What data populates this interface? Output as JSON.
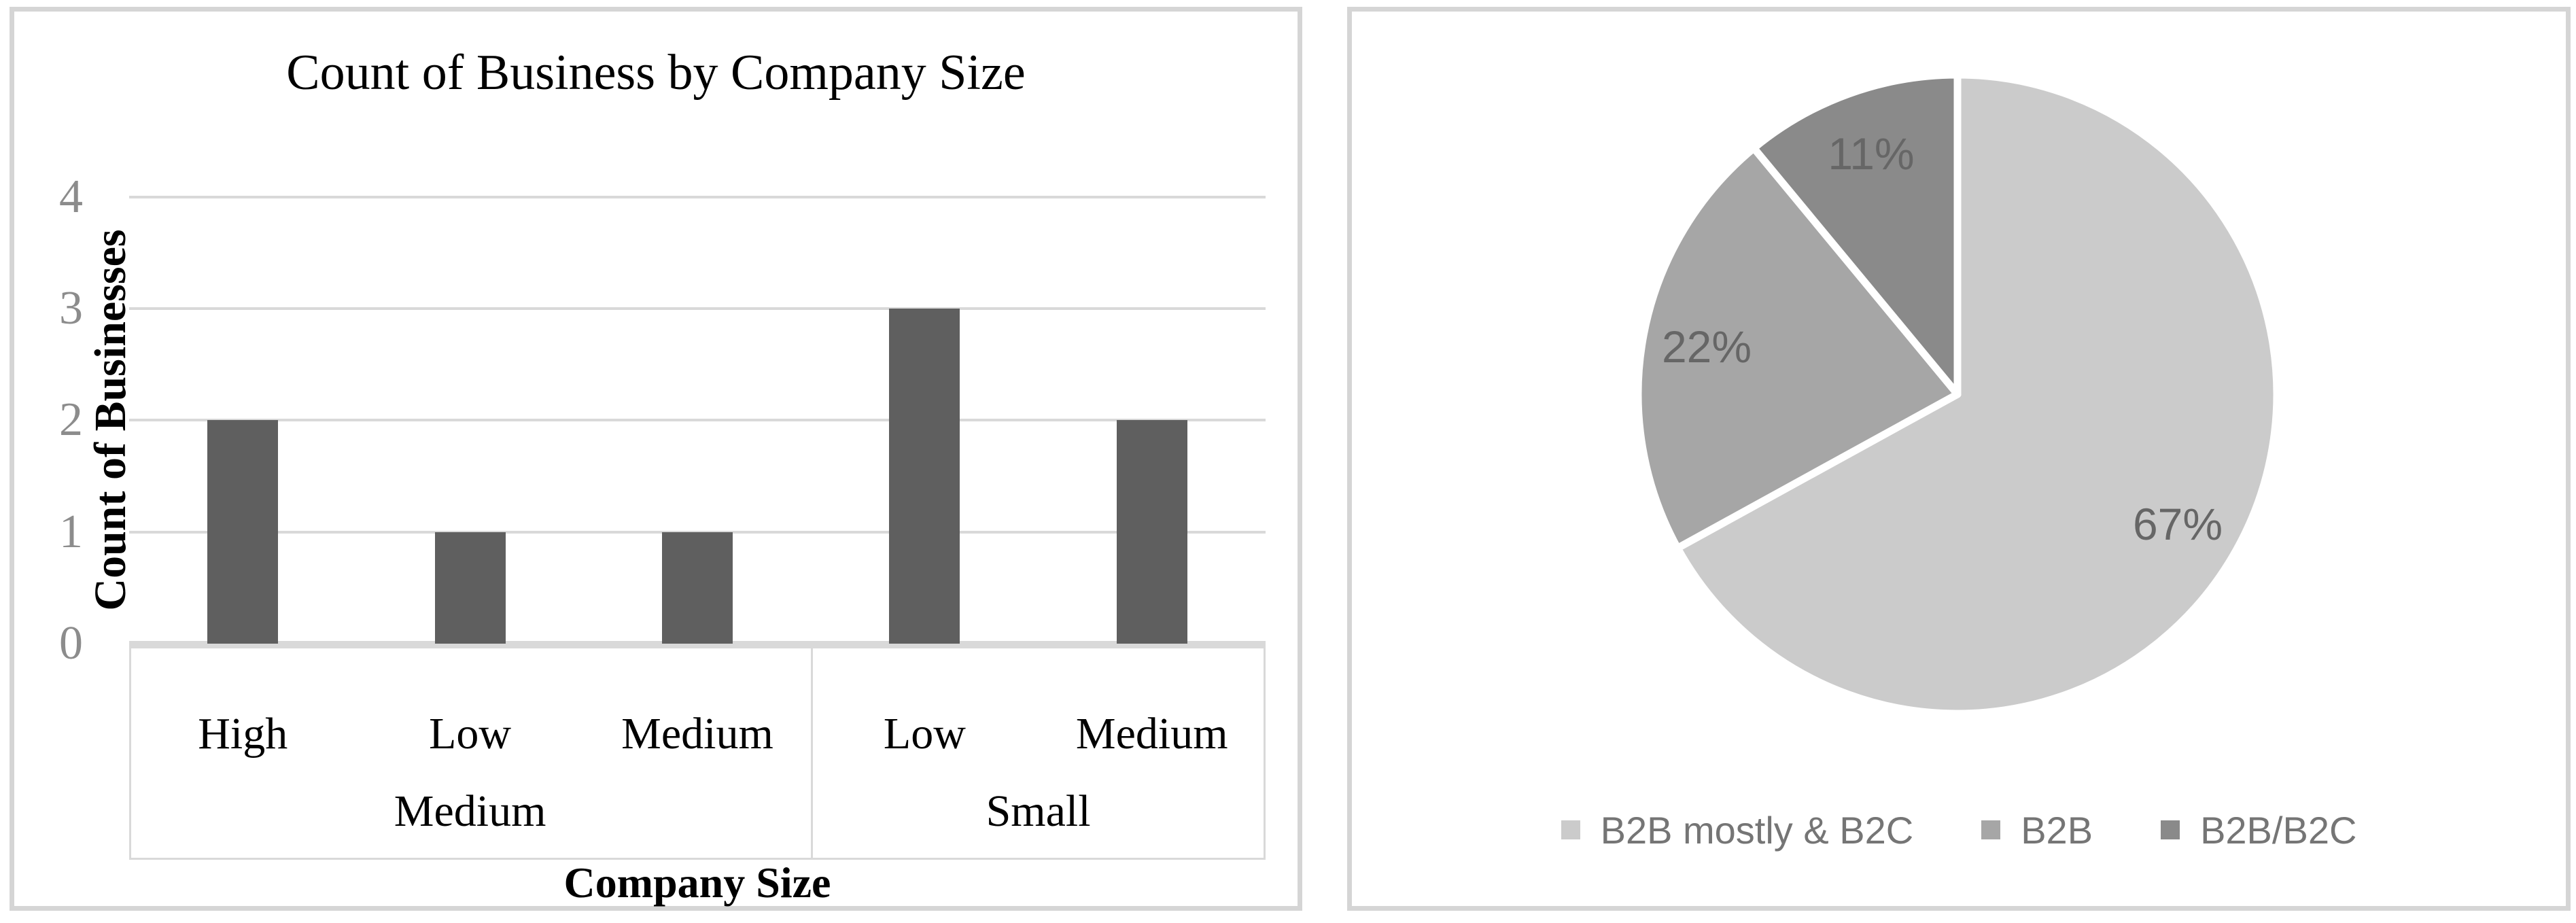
{
  "chart_data": [
    {
      "type": "bar",
      "title": "Count of Business by Company Size",
      "ylabel": "Count of Businesses",
      "xlabel": "Company Size",
      "ylim": [
        0,
        4
      ],
      "yticks": [
        0,
        1,
        2,
        3,
        4
      ],
      "groups": [
        {
          "group": "Medium",
          "categories": [
            "High",
            "Low",
            "Medium"
          ],
          "values": [
            2,
            1,
            1
          ]
        },
        {
          "group": "Small",
          "categories": [
            "Low",
            "Medium"
          ],
          "values": [
            3,
            2
          ]
        }
      ],
      "bar_color": "#5f5f5f",
      "grid": true,
      "gridline_color": "#d9d9d9",
      "tick_label_color": "#8c8c8c",
      "legend_position": "none"
    },
    {
      "type": "pie",
      "slices": [
        {
          "label": "B2B mostly & B2C",
          "value": 67,
          "display": "67%",
          "color": "#cbcbcb"
        },
        {
          "label": "B2B",
          "value": 22,
          "display": "22%",
          "color": "#a6a6a6"
        },
        {
          "label": "B2B/B2C",
          "value": 11,
          "display": "11%",
          "color": "#8a8a8a"
        }
      ],
      "start_angle_deg": 0,
      "direction": "clockwise",
      "separator_color": "#ffffff",
      "label_color": "#666666",
      "legend_position": "bottom",
      "legend_text_color": "#757575"
    }
  ]
}
